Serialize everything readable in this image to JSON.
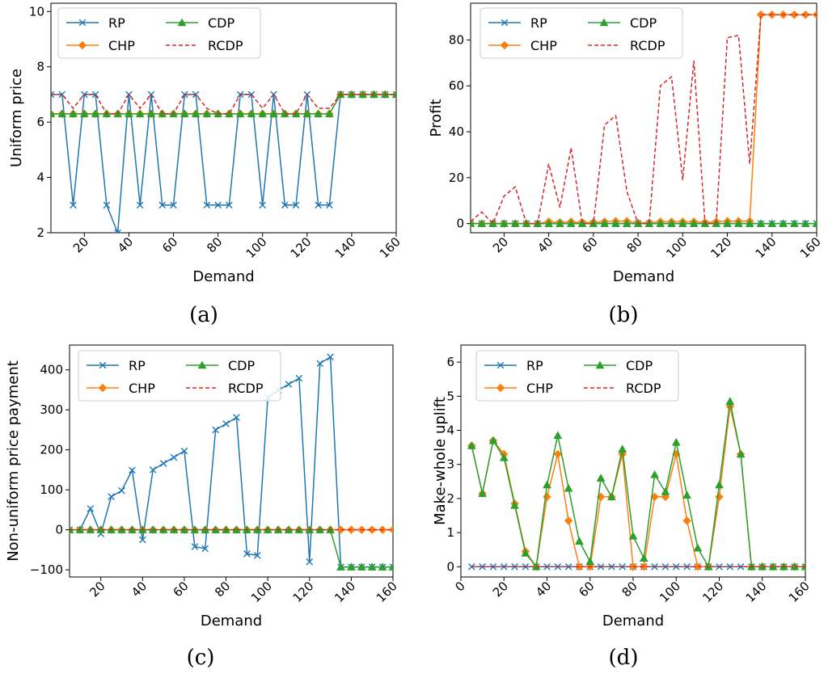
{
  "chart_data": [
    {
      "type": "line",
      "caption": "(a)",
      "xlabel": "Demand",
      "ylabel": "Uniform price",
      "xlim": [
        5,
        160
      ],
      "ylim": [
        2,
        10.3
      ],
      "xticks": [
        20,
        40,
        60,
        80,
        100,
        120,
        140,
        160
      ],
      "yticks": [
        2,
        4,
        6,
        8,
        10
      ],
      "x": [
        5,
        10,
        15,
        20,
        25,
        30,
        35,
        40,
        45,
        50,
        55,
        60,
        65,
        70,
        75,
        80,
        85,
        90,
        95,
        100,
        105,
        110,
        115,
        120,
        125,
        130,
        135,
        140,
        145,
        150,
        155,
        160
      ],
      "series": [
        {
          "name": "RP",
          "values": [
            7,
            7,
            3,
            7,
            7,
            3,
            2,
            7,
            3,
            7,
            3,
            3,
            7,
            7,
            3,
            3,
            3,
            7,
            7,
            3,
            7,
            3,
            3,
            7,
            3,
            3,
            7,
            7,
            7,
            7,
            7,
            7
          ]
        },
        {
          "name": "CHP",
          "values": [
            6.3,
            6.3,
            6.3,
            6.3,
            6.3,
            6.3,
            6.3,
            6.3,
            6.3,
            6.3,
            6.3,
            6.3,
            6.3,
            6.3,
            6.3,
            6.3,
            6.3,
            6.3,
            6.3,
            6.3,
            6.3,
            6.3,
            6.3,
            6.3,
            6.3,
            6.3,
            7,
            7,
            7,
            7,
            7,
            7
          ]
        },
        {
          "name": "CDP",
          "values": [
            6.3,
            6.3,
            6.3,
            6.3,
            6.3,
            6.3,
            6.3,
            6.3,
            6.3,
            6.3,
            6.3,
            6.3,
            6.3,
            6.3,
            6.3,
            6.3,
            6.3,
            6.3,
            6.3,
            6.3,
            6.3,
            6.3,
            6.3,
            6.3,
            6.3,
            6.3,
            7,
            7,
            7,
            7,
            7,
            7
          ]
        },
        {
          "name": "RCDP",
          "values": [
            7,
            7,
            6.5,
            7,
            7,
            6.3,
            6.3,
            7,
            6.5,
            7,
            6.3,
            6.3,
            7,
            7,
            6.5,
            6.3,
            6.3,
            7,
            7,
            6.5,
            7,
            6.3,
            6.3,
            7,
            6.5,
            6.5,
            7,
            7,
            7,
            7,
            7,
            7
          ]
        }
      ],
      "legend": "top-left"
    },
    {
      "type": "line",
      "caption": "(b)",
      "xlabel": "Demand",
      "ylabel": "Profit",
      "xlim": [
        5,
        160
      ],
      "ylim": [
        -4,
        96
      ],
      "xticks": [
        20,
        40,
        60,
        80,
        100,
        120,
        140,
        160
      ],
      "yticks": [
        0,
        20,
        40,
        60,
        80
      ],
      "x": [
        5,
        10,
        15,
        20,
        25,
        30,
        35,
        40,
        45,
        50,
        55,
        60,
        65,
        70,
        75,
        80,
        85,
        90,
        95,
        100,
        105,
        110,
        115,
        120,
        125,
        130,
        135,
        140,
        145,
        150,
        155,
        160
      ],
      "series": [
        {
          "name": "RP",
          "values": [
            0,
            0,
            0,
            0,
            0,
            0,
            0,
            0,
            0,
            0,
            0,
            0,
            0,
            0,
            0,
            0,
            0,
            0,
            0,
            0,
            0,
            0,
            0,
            0,
            0,
            0,
            0,
            0,
            0,
            0,
            0,
            0
          ]
        },
        {
          "name": "CHP",
          "values": [
            0,
            0,
            0,
            0,
            0,
            0,
            0,
            0.8,
            0.5,
            0.8,
            0.5,
            0.5,
            0.8,
            1,
            1,
            0.3,
            0.3,
            0.8,
            0.8,
            0.8,
            0.8,
            0.5,
            0.8,
            1,
            1,
            1,
            91,
            91,
            91,
            91,
            91,
            91
          ]
        },
        {
          "name": "CDP",
          "values": [
            0,
            0,
            0,
            0,
            0,
            0,
            0,
            0,
            0,
            0,
            0,
            0,
            0,
            0,
            0,
            0,
            0,
            0,
            0,
            0,
            0,
            0,
            0,
            0,
            0,
            0,
            0,
            0,
            0,
            0,
            0,
            0
          ]
        },
        {
          "name": "RCDP",
          "values": [
            1,
            5,
            0,
            12,
            16,
            0,
            0,
            26,
            7,
            33,
            0,
            0,
            43,
            47,
            14,
            0,
            0,
            60,
            64,
            19,
            71,
            0,
            0,
            81,
            82,
            26,
            91,
            91,
            91,
            91,
            91,
            91
          ]
        }
      ],
      "legend": "top-left"
    },
    {
      "type": "line",
      "caption": "(c)",
      "xlabel": "Demand",
      "ylabel": "Non-uniform price payment",
      "xlim": [
        5,
        160
      ],
      "ylim": [
        -118,
        462
      ],
      "xticks": [
        20,
        40,
        60,
        80,
        100,
        120,
        140,
        160
      ],
      "yticks": [
        -100,
        0,
        100,
        200,
        300,
        400
      ],
      "x": [
        5,
        10,
        15,
        20,
        25,
        30,
        35,
        40,
        45,
        50,
        55,
        60,
        65,
        70,
        75,
        80,
        85,
        90,
        95,
        100,
        105,
        110,
        115,
        120,
        125,
        130,
        135,
        140,
        145,
        150,
        155,
        160
      ],
      "series": [
        {
          "name": "RP",
          "values": [
            0,
            0,
            53,
            -10,
            83,
            98,
            149,
            -25,
            150,
            166,
            181,
            197,
            -42,
            -47,
            250,
            265,
            281,
            -60,
            -64,
            331,
            349,
            364,
            379,
            -80,
            416,
            432,
            -93,
            -93,
            -93,
            -93,
            -93,
            -93
          ]
        },
        {
          "name": "CHP",
          "values": [
            0,
            0,
            0,
            0,
            0,
            0,
            0,
            0,
            0,
            0,
            0,
            0,
            0,
            0,
            0,
            0,
            0,
            0,
            0,
            0,
            0,
            0,
            0,
            0,
            0,
            0,
            0,
            0,
            0,
            0,
            0,
            0
          ]
        },
        {
          "name": "CDP",
          "values": [
            0,
            0,
            0,
            0,
            0,
            0,
            0,
            0,
            0,
            0,
            0,
            0,
            0,
            0,
            0,
            0,
            0,
            0,
            0,
            0,
            0,
            0,
            0,
            0,
            0,
            0,
            -93,
            -93,
            -93,
            -93,
            -93,
            -93
          ]
        },
        {
          "name": "RCDP",
          "values": [
            0,
            0,
            0,
            0,
            0,
            0,
            0,
            0,
            0,
            0,
            0,
            0,
            0,
            0,
            0,
            0,
            0,
            0,
            0,
            0,
            0,
            0,
            0,
            0,
            0,
            0,
            0,
            0,
            0,
            0,
            0,
            0
          ]
        }
      ],
      "legend": "top-left"
    },
    {
      "type": "line",
      "caption": "(d)",
      "xlabel": "Demand",
      "ylabel": "Make-whole uplift",
      "xlim": [
        0,
        160
      ],
      "ylim": [
        -0.3,
        6.5
      ],
      "xticks": [
        0,
        20,
        40,
        60,
        80,
        100,
        120,
        140,
        160
      ],
      "yticks": [
        0,
        1,
        2,
        3,
        4,
        5,
        6
      ],
      "x": [
        5,
        10,
        15,
        20,
        25,
        30,
        35,
        40,
        45,
        50,
        55,
        60,
        65,
        70,
        75,
        80,
        85,
        90,
        95,
        100,
        105,
        110,
        115,
        120,
        125,
        130,
        135,
        140,
        145,
        150,
        155,
        160
      ],
      "series": [
        {
          "name": "RP",
          "values": [
            0,
            0,
            0,
            0,
            0,
            0,
            0,
            0,
            0,
            0,
            0,
            0,
            0,
            0,
            0,
            0,
            0,
            0,
            0,
            0,
            0,
            0,
            0,
            0,
            0,
            0,
            0,
            0,
            0,
            0,
            0,
            0
          ]
        },
        {
          "name": "CHP",
          "values": [
            3.55,
            2.15,
            3.7,
            3.3,
            1.85,
            0.45,
            0,
            2.05,
            3.3,
            1.35,
            0,
            0,
            2.05,
            2.05,
            3.3,
            0,
            0,
            2.05,
            2.05,
            3.3,
            1.35,
            0,
            0,
            2.05,
            4.7,
            3.3,
            0,
            0,
            0,
            0,
            0,
            0
          ]
        },
        {
          "name": "CDP",
          "values": [
            3.55,
            2.15,
            3.7,
            3.2,
            1.8,
            0.4,
            0,
            2.4,
            3.85,
            2.3,
            0.75,
            0.15,
            2.6,
            2.05,
            3.45,
            0.9,
            0.25,
            2.7,
            2.2,
            3.65,
            2.1,
            0.55,
            0,
            2.4,
            4.85,
            3.3,
            0,
            0,
            0,
            0,
            0,
            0
          ]
        },
        {
          "name": "RCDP",
          "values": [
            0,
            0,
            0,
            0,
            0,
            0,
            0,
            0,
            0,
            0,
            0,
            0,
            0,
            0,
            0,
            0,
            0,
            0,
            0,
            0,
            0,
            0,
            0,
            0,
            0,
            0,
            0,
            0,
            0,
            0,
            0,
            0
          ]
        }
      ],
      "legend": "top-left"
    }
  ],
  "series_styles": {
    "RP": {
      "color": "#1f77b4",
      "marker": "x",
      "dash": false
    },
    "CHP": {
      "color": "#ff7f0e",
      "marker": "diamond",
      "dash": false
    },
    "CDP": {
      "color": "#2ca02c",
      "marker": "triangle",
      "dash": false
    },
    "RCDP": {
      "color": "#d62728",
      "marker": "none",
      "dash": true
    }
  }
}
